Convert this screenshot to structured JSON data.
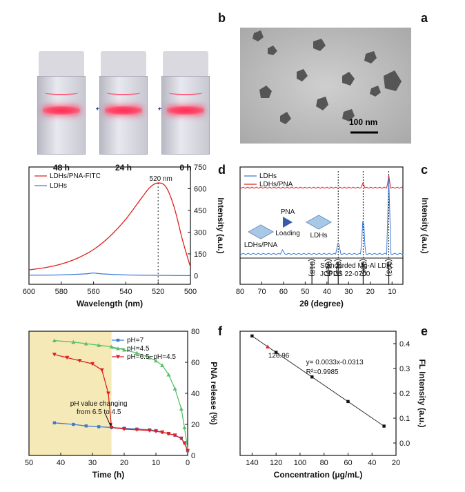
{
  "panel_labels": {
    "a": "a",
    "b": "b",
    "c": "c",
    "d": "d",
    "e": "e",
    "f": "f"
  },
  "vials": [
    {
      "label": "48 h"
    },
    {
      "label": "24 h"
    },
    {
      "label": "0 h"
    }
  ],
  "tem": {
    "scale_label": "100 nm"
  },
  "colors": {
    "red": "#e02020",
    "blue": "#3a7bd5",
    "green": "#5cbf6b",
    "highlight": "#f5e9b8",
    "arrow": "#1e2f86"
  },
  "chart_data": [
    {
      "id": "d",
      "type": "line",
      "xlabel": "Wavelength (nm)",
      "ylabel": "Intensity (a.u.)",
      "xlim": [
        500,
        600
      ],
      "ylim": [
        -60,
        750
      ],
      "x_ticks": [
        500,
        520,
        540,
        560,
        580,
        600
      ],
      "y_ticks": [
        0,
        150,
        300,
        450,
        600,
        750
      ],
      "annotation": "520 nm",
      "series": [
        {
          "name": "LDHs/PNA-FITC",
          "color": "#e02020",
          "x": [
            500,
            505,
            510,
            515,
            520,
            525,
            530,
            540,
            550,
            560,
            570,
            580,
            590,
            600
          ],
          "y": [
            60,
            250,
            470,
            610,
            640,
            610,
            540,
            390,
            270,
            180,
            120,
            80,
            55,
            40
          ]
        },
        {
          "name": "LDHs",
          "color": "#3a7bd5",
          "x": [
            500,
            520,
            540,
            555,
            560,
            565,
            580,
            600
          ],
          "y": [
            0,
            2,
            5,
            12,
            18,
            12,
            5,
            3
          ]
        }
      ]
    },
    {
      "id": "c",
      "type": "line",
      "xlabel": "2θ (degree)",
      "ylabel": "Intensity (a.u.)",
      "xlim": [
        5,
        80
      ],
      "x_ticks": [
        10,
        20,
        30,
        40,
        50,
        60,
        70,
        80
      ],
      "series": [
        {
          "name": "LDHs",
          "color": "#3a7bd5"
        },
        {
          "name": "LDHs/PNA",
          "color": "#e02020"
        }
      ],
      "reference_label": "Standarded Mg-Al LDH: JCPDS 22-0700",
      "reference_peaks": [
        {
          "x": 11.5,
          "label": "(003)"
        },
        {
          "x": 23.3,
          "label": "(006)"
        },
        {
          "x": 34.8,
          "label": "(012)"
        },
        {
          "x": 39.4,
          "label": "(015)"
        },
        {
          "x": 46.9,
          "label": "(018)"
        }
      ],
      "schematic": {
        "left": "LDHs",
        "middle_top": "PNA",
        "middle_bottom": "Loading",
        "right": "LDHs/PNA"
      }
    },
    {
      "id": "f",
      "type": "line",
      "xlabel": "Time (h)",
      "ylabel": "PNA release (%)",
      "xlim": [
        0,
        50
      ],
      "ylim": [
        0,
        80
      ],
      "x_ticks": [
        0,
        10,
        20,
        30,
        40,
        50
      ],
      "y_ticks": [
        0,
        20,
        40,
        60,
        80
      ],
      "annotation": "pH value changing from 6.5 to 4.5",
      "highlight_range": [
        24,
        50
      ],
      "series": [
        {
          "name": "pH=7",
          "color": "#3a7bd5",
          "x": [
            0,
            1,
            2,
            4,
            6,
            8,
            10,
            12,
            16,
            20,
            24,
            28,
            32,
            36,
            42
          ],
          "y": [
            3,
            8,
            11,
            13,
            14,
            15,
            16,
            16.5,
            17,
            17.5,
            18,
            18.5,
            19,
            20,
            21
          ]
        },
        {
          "name": "pH=4.5",
          "color": "#5cbf6b",
          "x": [
            0,
            1,
            2,
            4,
            6,
            8,
            10,
            12,
            16,
            20,
            24,
            28,
            32,
            36,
            42
          ],
          "y": [
            4,
            18,
            30,
            43,
            52,
            58,
            61,
            63,
            66,
            68,
            70,
            71,
            72,
            73,
            74
          ]
        },
        {
          "name": "pH=6.5~pH=4.5",
          "color": "#e02020",
          "x": [
            0,
            1,
            2,
            4,
            6,
            8,
            10,
            12,
            16,
            20,
            24,
            25,
            27,
            30,
            34,
            38,
            42
          ],
          "y": [
            3,
            8,
            11,
            13,
            14,
            15,
            15.5,
            16,
            16.5,
            17,
            18,
            40,
            55,
            59,
            61,
            63,
            65
          ]
        }
      ]
    },
    {
      "id": "e",
      "type": "scatter",
      "xlabel": "Concentration (μg/mL)",
      "ylabel": "FL Intensity (a.u.)",
      "xlim": [
        20,
        150
      ],
      "ylim": [
        -0.05,
        0.45
      ],
      "x_ticks": [
        20,
        40,
        60,
        80,
        100,
        120,
        140
      ],
      "y_ticks": [
        0.0,
        0.1,
        0.2,
        0.3,
        0.4
      ],
      "equation": "y= 0.0033x-0.0313",
      "r2": "R²=0.9985",
      "highlight_point": {
        "x": 126.96,
        "y": 0.388,
        "label": "126.96"
      },
      "series": [
        {
          "name": "",
          "color": "#111111",
          "x": [
            30,
            60,
            90,
            120,
            140
          ],
          "y": [
            0.068,
            0.167,
            0.266,
            0.365,
            0.431
          ]
        }
      ]
    }
  ]
}
